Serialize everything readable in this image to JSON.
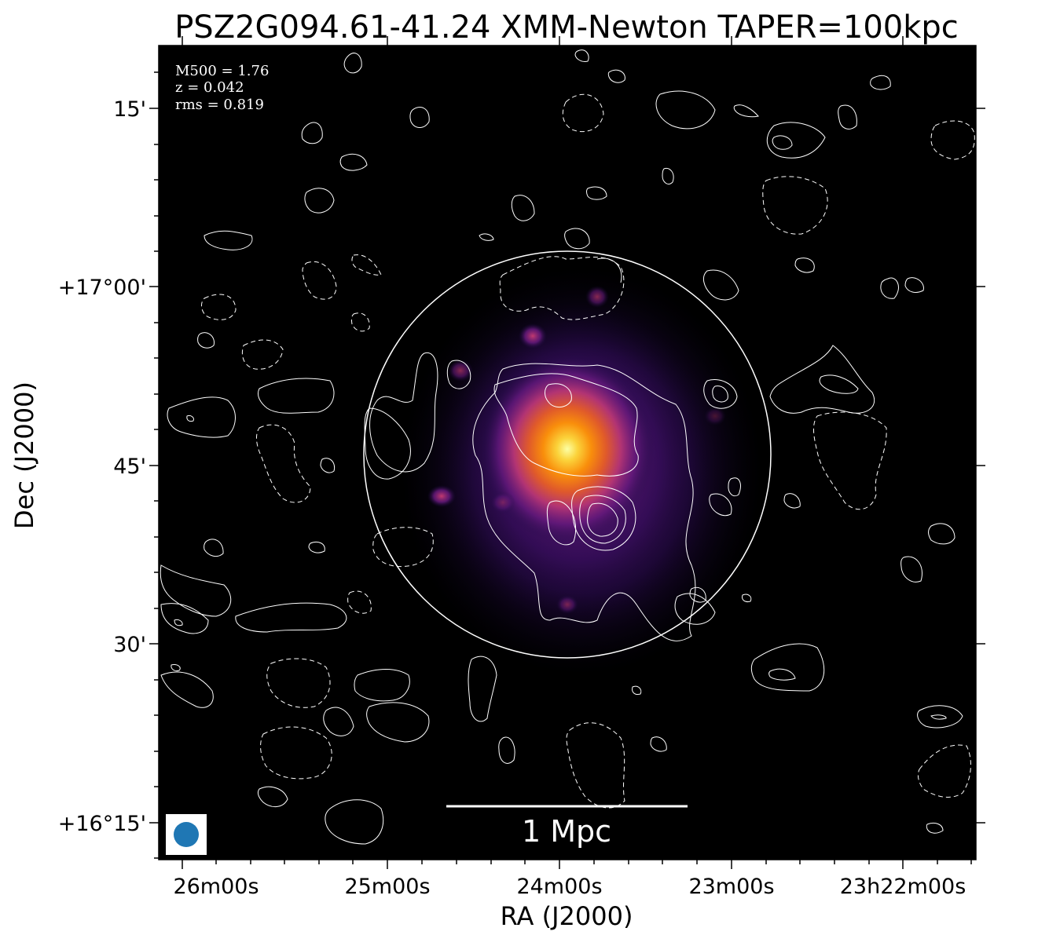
{
  "figure": {
    "title": "PSZ2G094.61-41.24 XMM-Newton TAPER=100kpc",
    "xlabel": "RA (J2000)",
    "ylabel": "Dec (J2000)",
    "info": {
      "m500": "M500 = 1.76",
      "z": "z = 0.042",
      "rms": "rms = 0.819"
    },
    "scalebar_label": "1 Mpc",
    "x_ticks": [
      "26m00s",
      "25m00s",
      "24m00s",
      "23m00s",
      "23h22m00s"
    ],
    "y_ticks": [
      "15'",
      "+17°00'",
      "45'",
      "30'",
      "+16°15'"
    ]
  },
  "colors": {
    "background": "#000000",
    "contour": "#ffffff",
    "beam": "#1f77b4"
  }
}
